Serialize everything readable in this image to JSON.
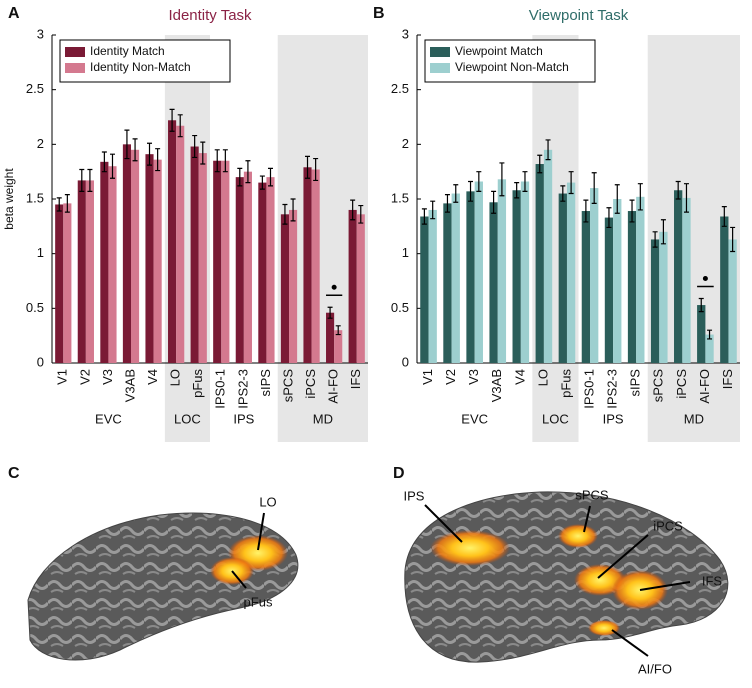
{
  "chart_data": [
    {
      "type": "bar",
      "panel": "A",
      "title": "Identity Task",
      "title_color": "#8b2346",
      "ylabel": "beta weight",
      "categories": [
        "V1",
        "V2",
        "V3",
        "V3AB",
        "V4",
        "LO",
        "pFus",
        "IPS0-1",
        "IPS2-3",
        "sIPS",
        "sPCS",
        "iPCS",
        "AI-FO",
        "IFS"
      ],
      "series": [
        {
          "name": "Identity Match",
          "color": "#7a1a35",
          "values": [
            1.45,
            1.67,
            1.84,
            2.0,
            1.91,
            2.22,
            1.98,
            1.85,
            1.7,
            1.65,
            1.36,
            1.79,
            0.46,
            1.4
          ],
          "errors": [
            0.06,
            0.1,
            0.09,
            0.13,
            0.1,
            0.1,
            0.1,
            0.1,
            0.08,
            0.06,
            0.09,
            0.1,
            0.05,
            0.09
          ]
        },
        {
          "name": "Identity Non-Match",
          "color": "#d4798f",
          "values": [
            1.46,
            1.67,
            1.8,
            1.95,
            1.86,
            2.17,
            1.92,
            1.85,
            1.75,
            1.7,
            1.4,
            1.77,
            0.3,
            1.36
          ],
          "errors": [
            0.08,
            0.1,
            0.11,
            0.1,
            0.1,
            0.1,
            0.1,
            0.1,
            0.1,
            0.08,
            0.1,
            0.1,
            0.04,
            0.08
          ]
        }
      ],
      "ylim": [
        0,
        3
      ],
      "yticks": [
        0,
        0.5,
        1,
        1.5,
        2,
        2.5,
        3
      ],
      "groups": [
        {
          "label": "EVC",
          "size": 5,
          "shaded": false
        },
        {
          "label": "LOC",
          "size": 2,
          "shaded": true
        },
        {
          "label": "IPS",
          "size": 3,
          "shaded": false
        },
        {
          "label": "MD",
          "size": 4,
          "shaded": true
        }
      ],
      "significant_categories": [
        "AI-FO"
      ],
      "legend": "upper left"
    },
    {
      "type": "bar",
      "panel": "B",
      "title": "Viewpoint Task",
      "title_color": "#2f6d69",
      "categories": [
        "V1",
        "V2",
        "V3",
        "V3AB",
        "V4",
        "LO",
        "pFus",
        "IPS0-1",
        "IPS2-3",
        "sIPS",
        "sPCS",
        "iPCS",
        "AI-FO",
        "IFS"
      ],
      "series": [
        {
          "name": "Viewpoint Match",
          "color": "#2b5e5a",
          "values": [
            1.34,
            1.46,
            1.57,
            1.47,
            1.58,
            1.82,
            1.55,
            1.39,
            1.33,
            1.39,
            1.13,
            1.58,
            0.53,
            1.34
          ],
          "errors": [
            0.07,
            0.08,
            0.09,
            0.1,
            0.07,
            0.08,
            0.07,
            0.1,
            0.09,
            0.1,
            0.07,
            0.08,
            0.06,
            0.09
          ]
        },
        {
          "name": "Viewpoint Non-Match",
          "color": "#9dcfcf",
          "values": [
            1.4,
            1.55,
            1.66,
            1.68,
            1.66,
            1.95,
            1.65,
            1.6,
            1.5,
            1.52,
            1.2,
            1.51,
            0.26,
            1.13
          ],
          "errors": [
            0.08,
            0.08,
            0.09,
            0.15,
            0.09,
            0.09,
            0.1,
            0.14,
            0.13,
            0.12,
            0.11,
            0.13,
            0.04,
            0.11
          ]
        }
      ],
      "ylim": [
        0,
        3
      ],
      "yticks": [
        0,
        0.5,
        1,
        1.5,
        2,
        2.5,
        3
      ],
      "groups": [
        {
          "label": "EVC",
          "size": 5,
          "shaded": false
        },
        {
          "label": "LOC",
          "size": 2,
          "shaded": true
        },
        {
          "label": "IPS",
          "size": 3,
          "shaded": false
        },
        {
          "label": "MD",
          "size": 4,
          "shaded": true
        }
      ],
      "significant_categories": [
        "AI-FO"
      ],
      "legend": "upper left"
    }
  ],
  "brain_panels": [
    {
      "letter": "C",
      "labels": [
        "LO",
        "pFus"
      ]
    },
    {
      "letter": "D",
      "labels": [
        "IPS",
        "sPCS",
        "iPCS",
        "IFS",
        "AI/FO"
      ]
    }
  ]
}
